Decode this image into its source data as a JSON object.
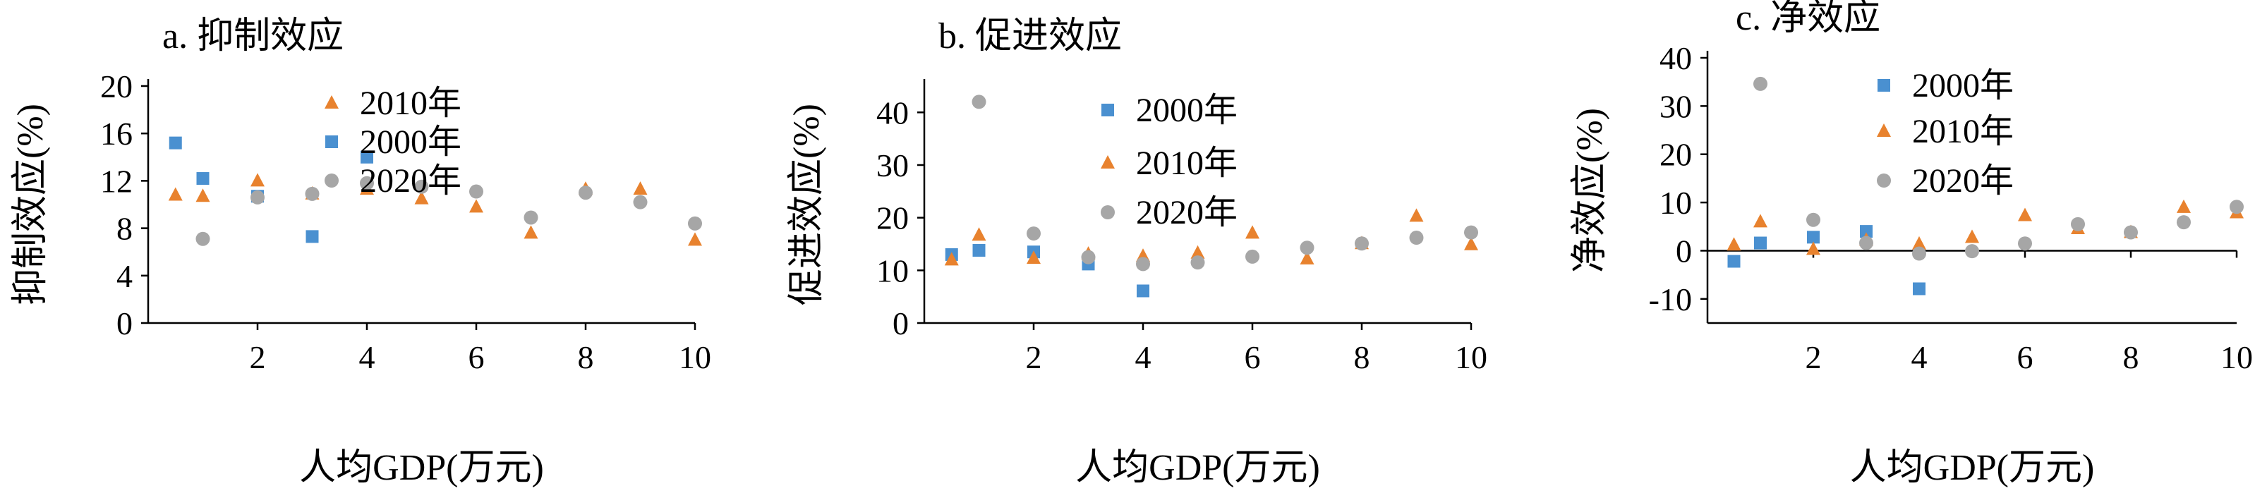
{
  "colors": {
    "2000": "#4a90d0",
    "2010": "#e8822e",
    "2020": "#a6a6a6"
  },
  "chart_data": [
    {
      "type": "scatter",
      "title": "a. 抑制效应",
      "xlabel": "人均GDP(万元)",
      "ylabel": "抑制效应(%)",
      "xlim": [
        0,
        10
      ],
      "ylim": [
        0,
        20
      ],
      "xticks": [
        "2",
        "4",
        "6",
        "8",
        "10"
      ],
      "yticks": [
        "0",
        "4",
        "8",
        "12",
        "16",
        "20"
      ],
      "legend": [
        "2010年",
        "2000年",
        "2020年"
      ],
      "series": [
        {
          "name": "2000年",
          "marker": "square",
          "colorKey": "2000",
          "points": [
            [
              0.5,
              15.2
            ],
            [
              1.0,
              12.2
            ],
            [
              2.0,
              10.7
            ],
            [
              3.0,
              7.3
            ],
            [
              4.0,
              14.0
            ]
          ]
        },
        {
          "name": "2010年",
          "marker": "triangle",
          "colorKey": "2010",
          "points": [
            [
              0.5,
              10.8
            ],
            [
              1.0,
              10.7
            ],
            [
              2.0,
              12.0
            ],
            [
              3.0,
              10.9
            ],
            [
              4.0,
              11.3
            ],
            [
              5.0,
              10.5
            ],
            [
              6.0,
              9.8
            ],
            [
              7.0,
              7.6
            ],
            [
              8.0,
              11.3
            ],
            [
              9.0,
              11.3
            ],
            [
              10.0,
              7.0
            ]
          ]
        },
        {
          "name": "2020年",
          "marker": "circle",
          "colorKey": "2020",
          "points": [
            [
              1.0,
              7.1
            ],
            [
              2.0,
              10.6
            ],
            [
              3.0,
              10.9
            ],
            [
              4.0,
              11.8
            ],
            [
              5.0,
              11.5
            ],
            [
              6.0,
              11.1
            ],
            [
              7.0,
              8.9
            ],
            [
              8.0,
              11.0
            ],
            [
              9.0,
              10.2
            ],
            [
              10.0,
              8.4
            ]
          ]
        }
      ]
    },
    {
      "type": "scatter",
      "title": "b. 促进效应",
      "xlabel": "人均GDP(万元)",
      "ylabel": "促进效应(%)",
      "xlim": [
        0,
        10
      ],
      "ylim": [
        0,
        45
      ],
      "xticks": [
        "2",
        "4",
        "6",
        "8",
        "10"
      ],
      "yticks": [
        "0",
        "10",
        "20",
        "30",
        "40"
      ],
      "legend": [
        "2000年",
        "2010年",
        "2020年"
      ],
      "series": [
        {
          "name": "2000年",
          "marker": "square",
          "colorKey": "2000",
          "points": [
            [
              0.5,
              13.0
            ],
            [
              1.0,
              13.8
            ],
            [
              2.0,
              13.5
            ],
            [
              3.0,
              11.2
            ],
            [
              4.0,
              6.1
            ]
          ]
        },
        {
          "name": "2010年",
          "marker": "triangle",
          "colorKey": "2010",
          "points": [
            [
              0.5,
              12.0
            ],
            [
              1.0,
              16.7
            ],
            [
              2.0,
              12.3
            ],
            [
              3.0,
              13.1
            ],
            [
              4.0,
              12.7
            ],
            [
              5.0,
              13.3
            ],
            [
              6.0,
              17.1
            ],
            [
              7.0,
              12.2
            ],
            [
              8.0,
              15.1
            ],
            [
              9.0,
              20.3
            ],
            [
              10.0,
              14.9
            ]
          ]
        },
        {
          "name": "2020年",
          "marker": "circle",
          "colorKey": "2020",
          "points": [
            [
              1.0,
              42.0
            ],
            [
              2.0,
              17.0
            ],
            [
              3.0,
              12.5
            ],
            [
              4.0,
              11.2
            ],
            [
              5.0,
              11.5
            ],
            [
              6.0,
              12.6
            ],
            [
              7.0,
              14.3
            ],
            [
              8.0,
              15.1
            ],
            [
              9.0,
              16.2
            ],
            [
              10.0,
              17.2
            ]
          ]
        }
      ]
    },
    {
      "type": "scatter",
      "title": "c. 净效应",
      "xlabel": "人均GDP(万元)",
      "ylabel": "净效应(%)",
      "xlim": [
        0,
        10
      ],
      "ylim": [
        -15,
        40
      ],
      "xticks": [
        "2",
        "4",
        "6",
        "8",
        "10"
      ],
      "yticks": [
        "-10",
        "0",
        "10",
        "20",
        "30",
        "40"
      ],
      "zero_line": true,
      "legend": [
        "2000年",
        "2010年",
        "2020年"
      ],
      "series": [
        {
          "name": "2000年",
          "marker": "square",
          "colorKey": "2000",
          "points": [
            [
              0.5,
              -2.2
            ],
            [
              1.0,
              1.6
            ],
            [
              2.0,
              2.8
            ],
            [
              3.0,
              4.0
            ],
            [
              4.0,
              -7.9
            ]
          ]
        },
        {
          "name": "2010年",
          "marker": "triangle",
          "colorKey": "2010",
          "points": [
            [
              0.5,
              1.2
            ],
            [
              1.0,
              6.0
            ],
            [
              2.0,
              0.3
            ],
            [
              3.0,
              2.2
            ],
            [
              4.0,
              1.4
            ],
            [
              5.0,
              2.8
            ],
            [
              6.0,
              7.3
            ],
            [
              7.0,
              4.6
            ],
            [
              8.0,
              3.8
            ],
            [
              9.0,
              9.0
            ],
            [
              10.0,
              7.9
            ]
          ]
        },
        {
          "name": "2020年",
          "marker": "circle",
          "colorKey": "2020",
          "points": [
            [
              1.0,
              34.6
            ],
            [
              2.0,
              6.4
            ],
            [
              3.0,
              1.6
            ],
            [
              4.0,
              -0.6
            ],
            [
              5.0,
              -0.1
            ],
            [
              6.0,
              1.5
            ],
            [
              7.0,
              5.5
            ],
            [
              8.0,
              3.8
            ],
            [
              9.0,
              5.9
            ],
            [
              10.0,
              9.1
            ]
          ]
        }
      ]
    }
  ]
}
